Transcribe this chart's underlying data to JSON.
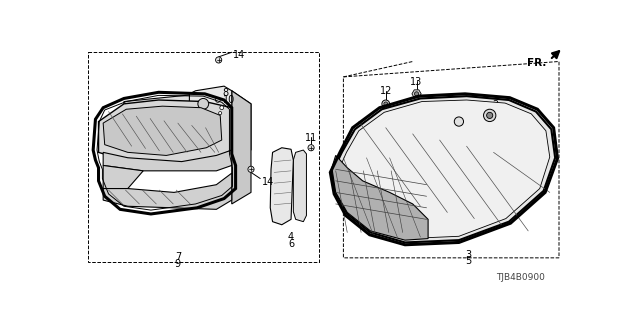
{
  "bg_color": "#ffffff",
  "part_number": "TJB4B0900",
  "lc": "#000000",
  "gray1": "#d8d8d8",
  "gray2": "#b8b8b8",
  "gray3": "#989898",
  "gray_dark": "#606060"
}
